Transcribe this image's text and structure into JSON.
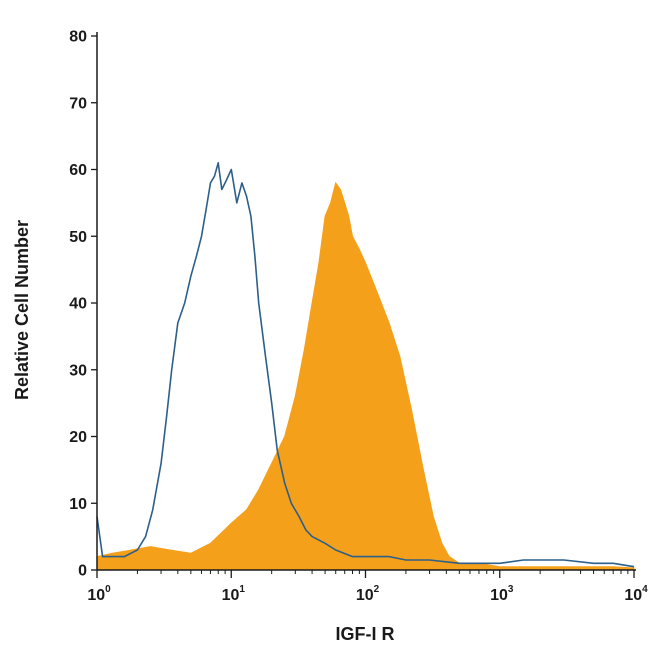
{
  "chart_data": {
    "type": "area",
    "title": "",
    "xlabel": "IGF-I R",
    "ylabel": "Relative Cell Number",
    "x_scale": "log",
    "xlim": [
      1,
      10000
    ],
    "ylim": [
      0,
      80
    ],
    "y_ticks": [
      "0",
      "10",
      "20",
      "30",
      "40",
      "50",
      "60",
      "70",
      "80"
    ],
    "x_ticks": [
      {
        "base": "10",
        "exp": "0"
      },
      {
        "base": "10",
        "exp": "1"
      },
      {
        "base": "10",
        "exp": "2"
      },
      {
        "base": "10",
        "exp": "3"
      },
      {
        "base": "10",
        "exp": "4"
      }
    ],
    "grid": false,
    "series": [
      {
        "style": "filled",
        "color": "#F5A01A",
        "x": [
          1,
          1.3,
          1.8,
          2.5,
          3.5,
          5,
          7,
          10,
          13,
          16,
          20,
          25,
          30,
          35,
          40,
          45,
          50,
          55,
          60,
          65,
          70,
          75,
          80,
          90,
          100,
          120,
          150,
          180,
          220,
          270,
          320,
          370,
          420,
          500,
          700,
          1000,
          1500,
          2000,
          3000,
          5000,
          7000,
          10000
        ],
        "y": [
          2,
          2.5,
          3,
          3.5,
          3,
          2.5,
          4,
          7,
          9,
          12,
          16,
          20,
          26,
          33,
          40,
          46,
          53,
          55,
          58,
          57,
          55,
          53,
          50,
          48,
          46,
          42,
          37,
          32,
          24,
          15,
          8,
          4,
          2,
          1,
          1,
          0.5,
          0.5,
          0.5,
          0.5,
          0.5,
          0.5,
          0.3
        ]
      },
      {
        "style": "outline",
        "color": "#2C5F8A",
        "x": [
          1,
          1.1,
          1.3,
          1.6,
          2,
          2.3,
          2.6,
          3,
          3.3,
          3.6,
          4,
          4.5,
          5,
          5.5,
          6,
          6.5,
          7,
          7.5,
          8,
          8.5,
          9,
          10,
          11,
          12,
          13,
          14,
          15,
          16,
          18,
          20,
          22,
          25,
          28,
          32,
          36,
          40,
          50,
          60,
          80,
          100,
          150,
          200,
          300,
          500,
          700,
          1000,
          1500,
          2000,
          3000,
          5000,
          7000,
          10000
        ],
        "y": [
          8,
          2,
          2,
          2,
          3,
          5,
          9,
          16,
          23,
          30,
          37,
          40,
          44,
          47,
          50,
          54,
          58,
          59,
          61,
          57,
          58,
          60,
          55,
          58,
          56,
          53,
          47,
          40,
          32,
          25,
          18,
          13,
          10,
          8,
          6,
          5,
          4,
          3,
          2,
          2,
          2,
          1.5,
          1.5,
          1,
          1,
          1,
          1.5,
          1.5,
          1.5,
          1,
          1,
          0.5
        ]
      }
    ]
  }
}
